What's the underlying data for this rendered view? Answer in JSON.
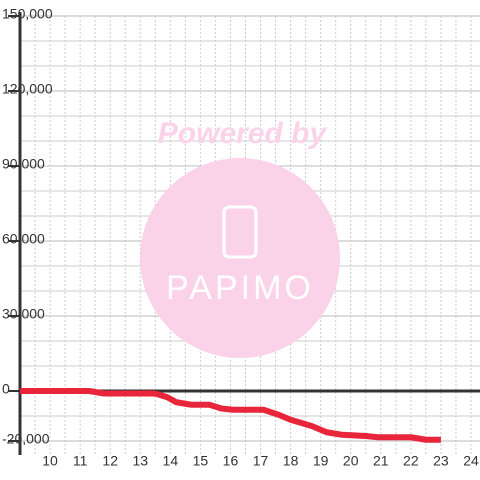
{
  "chart_data": {
    "type": "line",
    "watermark": {
      "text": "Powered by",
      "logo": "PAPIMO"
    },
    "x": [
      9,
      11.3,
      11.8,
      13.5,
      13.9,
      14.2,
      14.7,
      15.3,
      15.7,
      16.1,
      17.1,
      17.6,
      18,
      18.7,
      19.2,
      19.7,
      20.5,
      20.9,
      22,
      22.5,
      23
    ],
    "series": [
      {
        "name": null,
        "color": "#e8253a",
        "values": [
          0,
          0,
          -1000,
          -1000,
          -2500,
          -4500,
          -5500,
          -5500,
          -7000,
          -7500,
          -7500,
          -9500,
          -11500,
          -14000,
          -16500,
          -17500,
          -18000,
          -18500,
          -18500,
          -19500,
          -19500
        ]
      }
    ],
    "xlim": [
      9,
      24.3
    ],
    "xticks": [
      10,
      11,
      12,
      13,
      14,
      15,
      16,
      17,
      18,
      19,
      20,
      21,
      22,
      23,
      24
    ],
    "ylim": [
      -20000,
      150000
    ],
    "yticks": [
      {
        "value": -20000,
        "label": "-20,000"
      },
      0,
      {
        "value": 30000,
        "label": "30,000"
      },
      {
        "value": 60000,
        "label": "60,000"
      },
      {
        "value": 90000,
        "label": "90,000"
      },
      {
        "value": 120000,
        "label": "120,000"
      },
      {
        "value": 150000,
        "label": "150,000"
      }
    ],
    "grid": true
  }
}
